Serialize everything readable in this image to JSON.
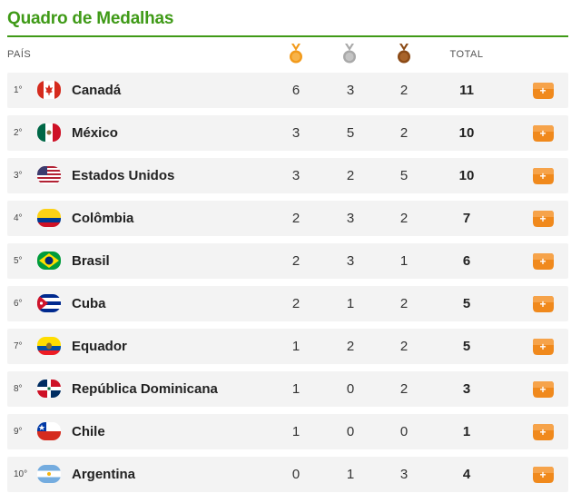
{
  "title": "Quadro de Medalhas",
  "header": {
    "country": "PAÍS",
    "total": "TOTAL"
  },
  "colors": {
    "accent": "#3f9a17",
    "gold": "#f29a1b",
    "silver": "#a9a9a9",
    "bronze": "#8b4a16",
    "plus_button": "#f0891c"
  },
  "rows": [
    {
      "rank": "1°",
      "country": "Canadá",
      "gold": "6",
      "silver": "3",
      "bronze": "2",
      "total": "11",
      "flag": "canada-flag-icon"
    },
    {
      "rank": "2°",
      "country": "México",
      "gold": "3",
      "silver": "5",
      "bronze": "2",
      "total": "10",
      "flag": "mexico-flag-icon"
    },
    {
      "rank": "3°",
      "country": "Estados Unidos",
      "gold": "3",
      "silver": "2",
      "bronze": "5",
      "total": "10",
      "flag": "usa-flag-icon"
    },
    {
      "rank": "4°",
      "country": "Colômbia",
      "gold": "2",
      "silver": "3",
      "bronze": "2",
      "total": "7",
      "flag": "colombia-flag-icon"
    },
    {
      "rank": "5°",
      "country": "Brasil",
      "gold": "2",
      "silver": "3",
      "bronze": "1",
      "total": "6",
      "flag": "brazil-flag-icon"
    },
    {
      "rank": "6°",
      "country": "Cuba",
      "gold": "2",
      "silver": "1",
      "bronze": "2",
      "total": "5",
      "flag": "cuba-flag-icon"
    },
    {
      "rank": "7°",
      "country": "Equador",
      "gold": "1",
      "silver": "2",
      "bronze": "2",
      "total": "5",
      "flag": "ecuador-flag-icon"
    },
    {
      "rank": "8°",
      "country": "República Dominicana",
      "gold": "1",
      "silver": "0",
      "bronze": "2",
      "total": "3",
      "flag": "dominican-republic-flag-icon"
    },
    {
      "rank": "9°",
      "country": "Chile",
      "gold": "1",
      "silver": "0",
      "bronze": "0",
      "total": "1",
      "flag": "chile-flag-icon"
    },
    {
      "rank": "10°",
      "country": "Argentina",
      "gold": "0",
      "silver": "1",
      "bronze": "3",
      "total": "4",
      "flag": "argentina-flag-icon"
    }
  ],
  "plus_label": "+"
}
